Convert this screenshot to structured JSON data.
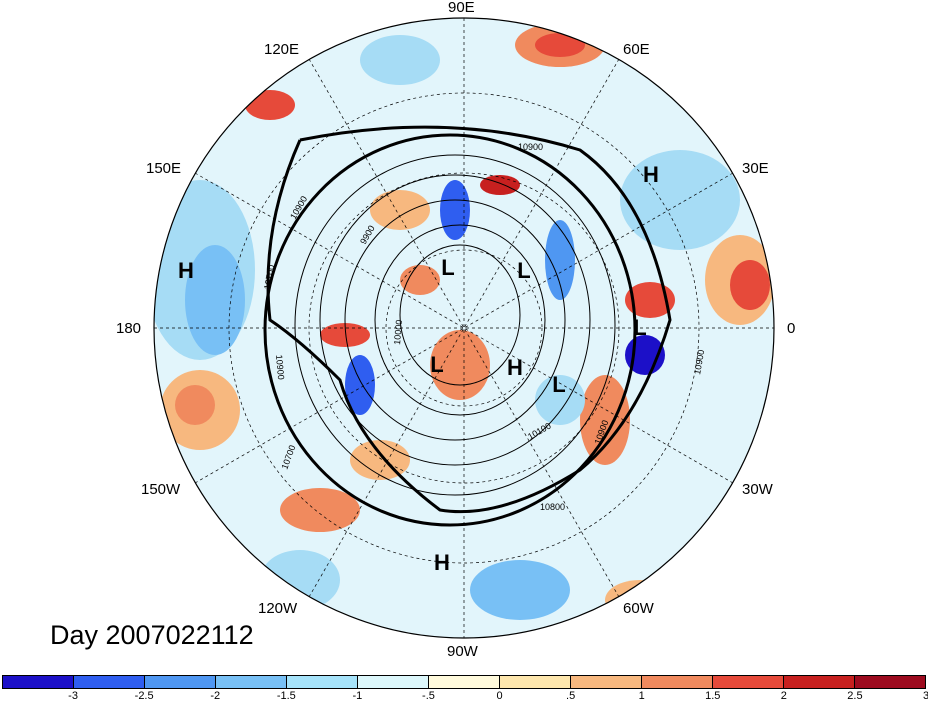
{
  "title": "Day 2007022112",
  "lon_labels": {
    "n": "90E",
    "ne1": "60E",
    "ne2": "30E",
    "e": "0",
    "se1": "30W",
    "se2": "60W",
    "s": "90W",
    "sw1": "120W",
    "sw2": "150W",
    "w": "180",
    "nw1": "150E",
    "nw2": "120E"
  },
  "pressure_systems": [
    "L",
    "L",
    "L",
    "L",
    "L",
    "H",
    "H",
    "H",
    "H"
  ],
  "contour_labels": [
    "10900",
    "10900",
    "10700",
    "10900",
    "10000",
    "10700",
    "10100",
    "10800",
    "10900",
    "10900",
    "9900"
  ],
  "colorbar": {
    "colors": [
      "#1c10c8",
      "#2f5ef0",
      "#4f97f2",
      "#78c0f5",
      "#a6e3fa",
      "#dcf7fb",
      "#fffadc",
      "#fde6ad",
      "#f7b87f",
      "#f08a5e",
      "#e64a3a",
      "#c7201f",
      "#9d0b1f"
    ],
    "ticks": [
      "-3",
      "-2.5",
      "-2",
      "-1.5",
      "-1",
      "-.5",
      "0",
      ".5",
      "1",
      "1.5",
      "2",
      "2.5",
      "3"
    ]
  }
}
